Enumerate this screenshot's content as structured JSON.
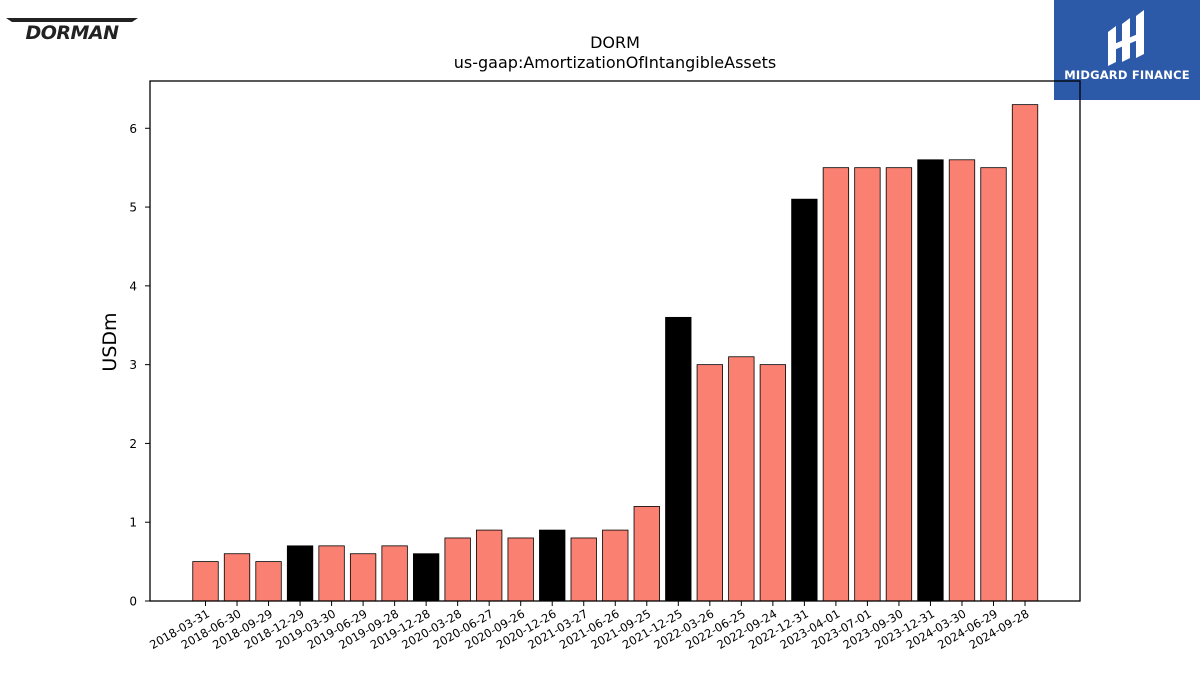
{
  "logos": {
    "left": "DORMAN",
    "right": "MIDGARD FINANCE"
  },
  "chart_data": {
    "type": "bar",
    "title": "DORM",
    "subtitle": "us-gaap:AmortizationOfIntangibleAssets",
    "xlabel": "",
    "ylabel": "USDm",
    "ylim": [
      0,
      6.6
    ],
    "yticks": [
      0,
      1,
      2,
      3,
      4,
      5,
      6
    ],
    "grid": false,
    "categories": [
      "2018-03-31",
      "2018-06-30",
      "2018-09-29",
      "2018-12-29",
      "2019-03-30",
      "2019-06-29",
      "2019-09-28",
      "2019-12-28",
      "2020-03-28",
      "2020-06-27",
      "2020-09-26",
      "2020-12-26",
      "2021-03-27",
      "2021-06-26",
      "2021-09-25",
      "2021-12-25",
      "2022-03-26",
      "2022-06-25",
      "2022-09-24",
      "2022-12-31",
      "2023-04-01",
      "2023-07-01",
      "2023-09-30",
      "2023-12-31",
      "2024-03-30",
      "2024-06-29",
      "2024-09-28"
    ],
    "values": [
      0.5,
      0.6,
      0.5,
      0.7,
      0.7,
      0.6,
      0.7,
      0.6,
      0.8,
      0.9,
      0.8,
      0.9,
      0.8,
      0.9,
      1.2,
      3.6,
      3.0,
      3.1,
      3.0,
      5.1,
      5.5,
      5.5,
      5.5,
      5.6,
      5.6,
      5.5,
      6.3
    ],
    "highlight": [
      false,
      false,
      false,
      true,
      false,
      false,
      false,
      true,
      false,
      false,
      false,
      true,
      false,
      false,
      false,
      true,
      false,
      false,
      false,
      true,
      false,
      false,
      false,
      true,
      false,
      false,
      false
    ],
    "colors": {
      "bar": "#fa8072",
      "highlight": "#000000",
      "edge": "#000000"
    }
  }
}
